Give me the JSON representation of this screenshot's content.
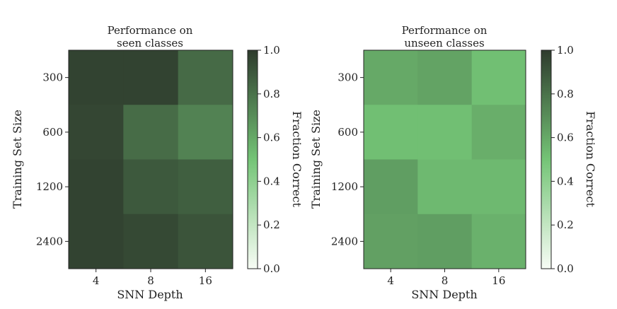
{
  "chart_data": [
    {
      "type": "heatmap",
      "title": "Performance on seen classes",
      "title_lines": [
        "Performance on",
        "seen classes"
      ],
      "xlabel": "SNN Depth",
      "ylabel": "Training Set Size",
      "x_categories": [
        "4",
        "8",
        "16"
      ],
      "y_categories": [
        "300",
        "600",
        "1200",
        "2400"
      ],
      "values": [
        [
          0.97,
          0.97,
          0.83
        ],
        [
          0.96,
          0.82,
          0.74
        ],
        [
          0.97,
          0.89,
          0.87
        ],
        [
          0.97,
          0.95,
          0.91
        ]
      ],
      "colorbar": {
        "label": "Fraction Correct",
        "range": [
          0.0,
          1.0
        ],
        "ticks": [
          "0.0",
          "0.2",
          "0.4",
          "0.6",
          "0.8",
          "1.0"
        ]
      },
      "colormap": [
        "#f7fcf5",
        "#74c476",
        "#2e3b2d"
      ]
    },
    {
      "type": "heatmap",
      "title": "Performance on unseen classes",
      "title_lines": [
        "Performance on",
        "unseen classes"
      ],
      "xlabel": "SNN Depth",
      "ylabel": "Training Set Size",
      "x_categories": [
        "4",
        "8",
        "16"
      ],
      "y_categories": [
        "300",
        "600",
        "1200",
        "2400"
      ],
      "values": [
        [
          0.6,
          0.62,
          0.52
        ],
        [
          0.52,
          0.52,
          0.58
        ],
        [
          0.64,
          0.54,
          0.54
        ],
        [
          0.63,
          0.64,
          0.57
        ]
      ],
      "colorbar": {
        "label": "Fraction Correct",
        "range": [
          0.0,
          1.0
        ],
        "ticks": [
          "0.0",
          "0.2",
          "0.4",
          "0.6",
          "0.8",
          "1.0"
        ]
      },
      "colormap": [
        "#f7fcf5",
        "#74c476",
        "#2e3b2d"
      ]
    }
  ]
}
